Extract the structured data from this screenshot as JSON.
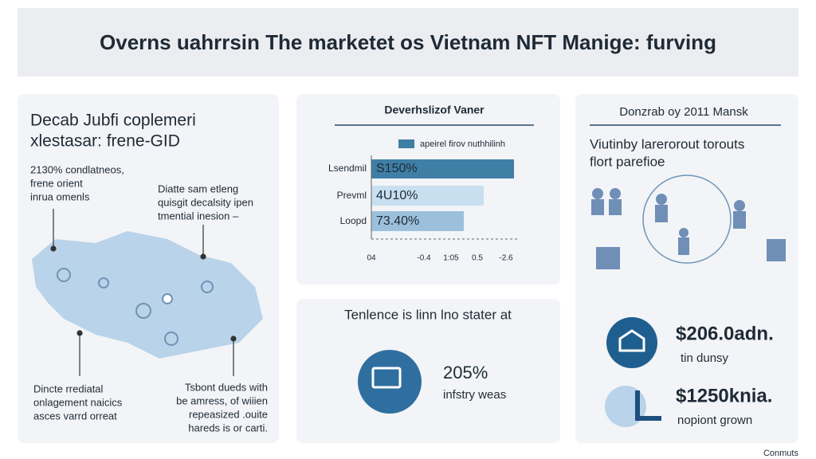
{
  "header": {
    "title": "Overns uahrrsin The marketet os Vietnam NFT Manige: furving"
  },
  "left_panel": {
    "title_lines": [
      "Decab Jubfi coplemeri",
      "xlestasar: frene-GID"
    ],
    "annotations": [
      [
        "2130% condlatneos,",
        "frene orient",
        "inrua omenls"
      ],
      [
        "Diatte sam etleng",
        "quisgit decalsity ipen",
        "tmential inesion –"
      ],
      [
        "Dincte rrediatal",
        "onlagement naicics",
        "asces varrd orreat"
      ],
      [
        "Tsbont dueds with",
        "be amress, of wiiien",
        "repeasized .ouite",
        "hareds is or carti."
      ]
    ]
  },
  "bar_panel": {
    "title": "Deverhslizof Vaner",
    "legend": "apeirel firov nuthhilinh",
    "categories": [
      "Lsendmil",
      "Prevml",
      "Loopd"
    ],
    "value_labels": [
      "S150%",
      "4U10%",
      "73.40%"
    ],
    "axis_labels": [
      "04",
      "-0.4",
      "1:05",
      "0.5",
      "-2.6"
    ]
  },
  "stat_panel": {
    "title": "Tenlence is linn lno stater at",
    "value": "205%",
    "caption": "infstry weas"
  },
  "right_panel": {
    "title": "Donzrab oy 2011 Mansk",
    "subtitle_lines": [
      "Viutinby larerorout torouts",
      "flort parefioe"
    ],
    "stats": [
      {
        "value": "$206.0adn.",
        "caption": "tin dunsy"
      },
      {
        "value": "$1250knia.",
        "caption": "nopiont grown"
      }
    ]
  },
  "footer": {
    "note": "Conmuts"
  }
}
